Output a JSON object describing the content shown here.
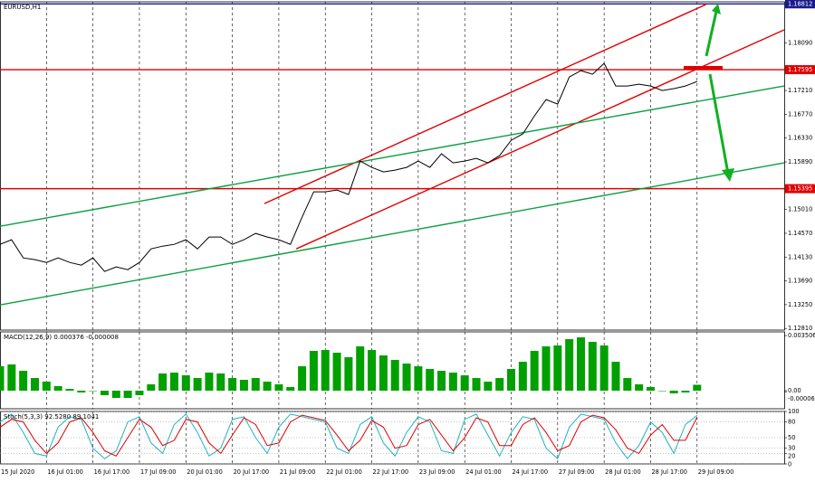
{
  "chart_data": [
    {
      "type": "line",
      "title": "EURUSD,H1",
      "x": [
        0,
        4,
        8,
        12,
        16,
        20,
        24,
        28,
        32,
        36,
        40,
        44,
        48,
        52,
        56,
        60,
        64,
        68,
        72,
        76,
        80,
        84,
        88,
        92,
        96,
        100,
        104,
        108,
        112,
        116,
        120,
        124,
        128,
        132,
        136,
        140,
        144,
        148,
        152,
        156,
        160,
        164,
        168,
        172,
        176,
        180,
        184,
        188,
        192,
        196,
        200,
        204,
        208,
        212,
        216,
        220,
        224,
        228,
        232,
        236,
        240
      ],
      "series": [
        {
          "color": "#000000",
          "values": [
            1.14366,
            1.1445,
            1.14115,
            1.14082,
            1.14031,
            1.14115,
            1.14031,
            1.13981,
            1.14115,
            1.13864,
            1.13948,
            1.13897,
            1.14031,
            1.14282,
            1.14332,
            1.14366,
            1.1445,
            1.14282,
            1.145,
            1.145,
            1.14366,
            1.1445,
            1.14567,
            1.145,
            1.1445,
            1.14366,
            1.14868,
            1.15336,
            1.15336,
            1.1537,
            1.15286,
            1.15905,
            1.15788,
            1.15704,
            1.15738,
            1.15788,
            1.15905,
            1.15788,
            1.16039,
            1.15872,
            1.15905,
            1.15955,
            1.15872,
            1.16005,
            1.1629,
            1.16407,
            1.16742,
            1.17043,
            1.16959,
            1.17461,
            1.17578,
            1.17511,
            1.17712,
            1.17294,
            1.17294,
            1.17327,
            1.17294,
            1.1721,
            1.17244,
            1.17294,
            1.17377
          ]
        }
      ],
      "xlim": [
        0,
        270
      ],
      "ylim": [
        1.1278,
        1.1885
      ],
      "yticks": [
        {
          "value": 1.1809,
          "label": "1.18090"
        },
        {
          "value": 1.1721,
          "label": "1.17210"
        },
        {
          "value": 1.1677,
          "label": "1.16770"
        },
        {
          "value": 1.1633,
          "label": "1.16330"
        },
        {
          "value": 1.1589,
          "label": "1.15890"
        },
        {
          "value": 1.1501,
          "label": "1.15010"
        },
        {
          "value": 1.1457,
          "label": "1.14570"
        },
        {
          "value": 1.1413,
          "label": "1.14130"
        },
        {
          "value": 1.1369,
          "label": "1.13690"
        },
        {
          "value": 1.1325,
          "label": "1.13250"
        },
        {
          "value": 1.1281,
          "label": "1.12810"
        }
      ],
      "xticks": [
        {
          "value": 0,
          "label": "15 Jul 2020"
        },
        {
          "value": 16,
          "label": "16 Jul 01:00"
        },
        {
          "value": 32,
          "label": "16 Jul 17:00"
        },
        {
          "value": 48,
          "label": "17 Jul 09:00"
        },
        {
          "value": 64,
          "label": "20 Jul 01:00"
        },
        {
          "value": 80,
          "label": "20 Jul 17:00"
        },
        {
          "value": 96,
          "label": "21 Jul 09:00"
        },
        {
          "value": 112,
          "label": "22 Jul 01:00"
        },
        {
          "value": 128,
          "label": "22 Jul 17:00"
        },
        {
          "value": 144,
          "label": "23 Jul 09:00"
        },
        {
          "value": 160,
          "label": "24 Jul 01:00"
        },
        {
          "value": 176,
          "label": "24 Jul 17:00"
        },
        {
          "value": 192,
          "label": "27 Jul 09:00"
        },
        {
          "value": 208,
          "label": "28 Jul 01:00"
        },
        {
          "value": 224,
          "label": "28 Jul 17:00"
        },
        {
          "value": 240,
          "label": "29 Jul 09:00"
        }
      ],
      "levels": [
        {
          "value": 1.18812,
          "color": "#1a1a8c"
        },
        {
          "value": 1.17595,
          "color": "#e00000"
        },
        {
          "value": 1.15395,
          "color": "#e00000"
        }
      ],
      "trendlines": [
        {
          "color": "#e00000",
          "x": [
            91,
            243
          ],
          "y": [
            1.15119,
            1.18799
          ]
        },
        {
          "color": "#e00000",
          "x": [
            102,
            270
          ],
          "y": [
            1.14282,
            1.18331
          ]
        },
        {
          "color": "#0aa040",
          "x": [
            0,
            270
          ],
          "y": [
            1.147,
            1.17294
          ]
        },
        {
          "color": "#0aa040",
          "x": [
            0,
            270
          ],
          "y": [
            1.13245,
            1.15872
          ]
        }
      ]
    },
    {
      "type": "bar",
      "title": "MACD(12,26,9) 0.000376 -0.000008",
      "x": [
        0,
        4,
        8,
        12,
        16,
        20,
        24,
        28,
        32,
        36,
        40,
        44,
        48,
        52,
        56,
        60,
        64,
        68,
        72,
        76,
        80,
        84,
        88,
        92,
        96,
        100,
        104,
        108,
        112,
        116,
        120,
        124,
        128,
        132,
        136,
        140,
        144,
        148,
        152,
        156,
        160,
        164,
        168,
        172,
        176,
        180,
        184,
        188,
        192,
        196,
        200,
        204,
        208,
        212,
        216,
        220,
        224,
        228,
        232,
        236,
        240
      ],
      "values": [
        0.001553,
        0.001668,
        0.001265,
        0.000805,
        0.000575,
        0.000288,
        0.000115,
        -0.000115,
        0,
        -0.000288,
        -0.00046,
        -0.00046,
        -0.000288,
        0.000403,
        0.001093,
        0.00115,
        0.000978,
        0.000805,
        0.00115,
        0.001093,
        0.000805,
        0.00069,
        0.000805,
        0.000575,
        0.000403,
        0.00023,
        0.001553,
        0.00253,
        0.002588,
        0.002415,
        0.002128,
        0.002818,
        0.002588,
        0.002243,
        0.001955,
        0.001725,
        0.001553,
        0.00138,
        0.001265,
        0.00115,
        0.000978,
        0.000805,
        0.000575,
        0.000805,
        0.00138,
        0.00184,
        0.00253,
        0.002818,
        0.002875,
        0.003278,
        0.003393,
        0.003105,
        0.002875,
        0.00184,
        0.000805,
        0.000403,
        0.00023,
        0,
        -0.000173,
        -0.000115,
        0.000376
      ],
      "color": "#00a000",
      "xlim": [
        0,
        270
      ],
      "ylim": [
        -0.00115,
        0.00374
      ],
      "yticks": [
        0.003506,
        {
          "value": 0,
          "label": "0.00"
        },
        -6.8e-05
      ]
    },
    {
      "type": "line",
      "title": "Stoch(5,3,3) 92.5280 89.1041",
      "x": [
        0,
        4,
        8,
        12,
        16,
        20,
        24,
        28,
        32,
        36,
        40,
        44,
        48,
        52,
        56,
        60,
        64,
        68,
        72,
        76,
        80,
        84,
        88,
        92,
        96,
        100,
        104,
        108,
        112,
        116,
        120,
        124,
        128,
        132,
        136,
        140,
        144,
        148,
        152,
        156,
        160,
        164,
        168,
        172,
        176,
        180,
        184,
        188,
        192,
        196,
        200,
        204,
        208,
        212,
        216,
        220,
        224,
        228,
        232,
        236,
        240
      ],
      "series": [
        {
          "color": "#20b2c0",
          "values": [
            80,
            95,
            60,
            20,
            15,
            70,
            90,
            85,
            30,
            10,
            25,
            80,
            90,
            40,
            20,
            75,
            95,
            60,
            15,
            30,
            85,
            90,
            50,
            20,
            70,
            95,
            90,
            85,
            80,
            30,
            20,
            75,
            90,
            40,
            15,
            60,
            90,
            80,
            25,
            20,
            85,
            95,
            55,
            15,
            60,
            90,
            85,
            30,
            10,
            70,
            95,
            90,
            85,
            40,
            10,
            35,
            80,
            60,
            20,
            75,
            92.528
          ]
        },
        {
          "color": "#e00000",
          "values": [
            70,
            85,
            80,
            45,
            20,
            40,
            80,
            88,
            60,
            25,
            15,
            50,
            85,
            70,
            35,
            45,
            85,
            80,
            40,
            20,
            55,
            88,
            75,
            35,
            40,
            80,
            93,
            88,
            83,
            55,
            25,
            45,
            83,
            70,
            30,
            35,
            75,
            85,
            55,
            25,
            50,
            88,
            80,
            35,
            35,
            75,
            88,
            60,
            25,
            35,
            80,
            93,
            88,
            65,
            30,
            20,
            55,
            75,
            45,
            45,
            89.1041
          ]
        }
      ],
      "xlim": [
        0,
        270
      ],
      "ylim": [
        0,
        100
      ],
      "yticks": [
        100,
        80,
        50,
        30,
        20,
        0
      ],
      "grid": true
    }
  ]
}
